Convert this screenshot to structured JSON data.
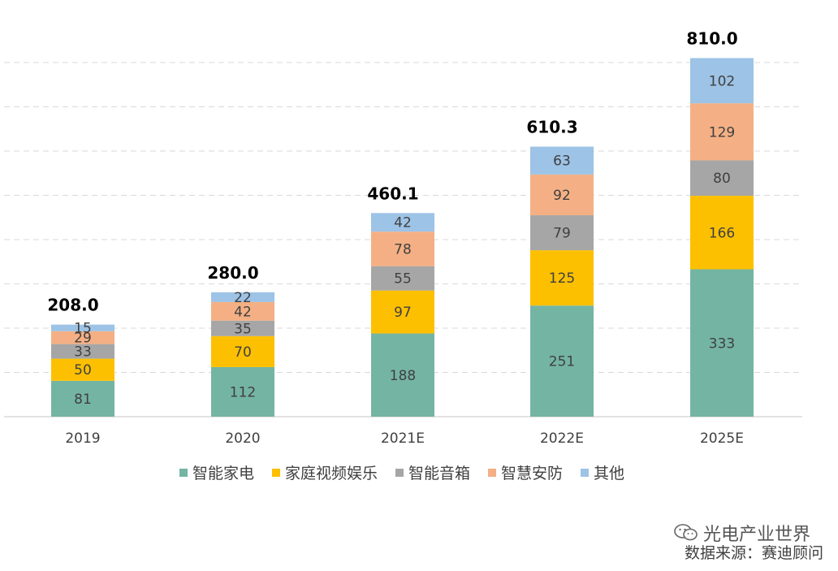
{
  "chart_data": {
    "type": "bar",
    "stacked": true,
    "categories": [
      "2019",
      "2020",
      "2021E",
      "2022E",
      "2025E"
    ],
    "totals": [
      "208.0",
      "280.0",
      "460.1",
      "610.3",
      "810.0"
    ],
    "series": [
      {
        "name": "智能家电",
        "color": "#74b4a3",
        "values": [
          81,
          112,
          188,
          251,
          333
        ]
      },
      {
        "name": "家庭视频娱乐",
        "color": "#fdc000",
        "values": [
          50,
          70,
          97,
          125,
          166
        ]
      },
      {
        "name": "智能音箱",
        "color": "#a6a6a6",
        "values": [
          33,
          35,
          55,
          79,
          80
        ]
      },
      {
        "name": "智慧安防",
        "color": "#f4b084",
        "values": [
          29,
          42,
          78,
          92,
          129
        ]
      },
      {
        "name": "其他",
        "color": "#9dc3e6",
        "values": [
          15,
          22,
          42,
          63,
          102
        ]
      }
    ],
    "ylim": [
      0,
      800
    ],
    "grid": true,
    "legend_position": "bottom"
  },
  "watermark": {
    "text": "光电产业世界",
    "icon": "wechat-icon"
  },
  "source_note": "数据来源：赛迪顾问"
}
